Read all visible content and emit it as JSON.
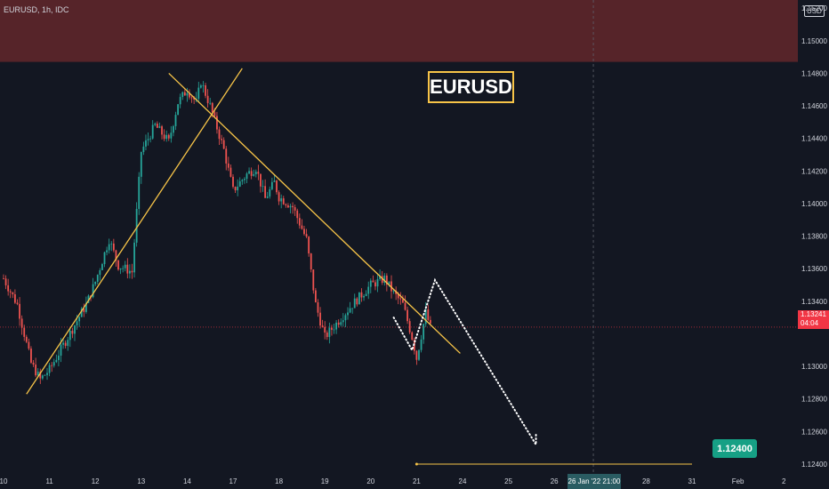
{
  "symbol": "EURUSD, 1h, IDC",
  "title_box": "EURUSD",
  "currency_badge": "USD",
  "target_label": "1.12400",
  "last_price": {
    "price": "1.13241",
    "countdown": "04:04"
  },
  "date_tag": "26 Jan '22   21:00",
  "colors": {
    "background": "#131722",
    "resistance_zone": "#562429",
    "up": "#26a69a",
    "down": "#ef5350",
    "trendline": "#f7c448",
    "target": "#16a085"
  },
  "chart_data": {
    "type": "candlestick",
    "y_ticks": [
      "1.15200",
      "1.15000",
      "1.14800",
      "1.14600",
      "1.14400",
      "1.14200",
      "1.14000",
      "1.13800",
      "1.13600",
      "1.13400",
      "1.13000",
      "1.12800",
      "1.12600",
      "1.12400"
    ],
    "x_ticks": [
      "10",
      "11",
      "12",
      "13",
      "14",
      "17",
      "18",
      "19",
      "20",
      "21",
      "24",
      "25",
      "26",
      "27",
      "28",
      "31",
      "Feb",
      "2"
    ],
    "ylim": [
      1.1234,
      1.1525
    ],
    "resistance_zone": [
      1.1487,
      1.1525
    ],
    "close_path": [
      [
        0.0,
        1.1354
      ],
      [
        0.3,
        1.1338
      ],
      [
        0.6,
        1.1302
      ],
      [
        0.8,
        1.1292
      ],
      [
        1.0,
        1.1298
      ],
      [
        1.4,
        1.1318
      ],
      [
        1.8,
        1.1338
      ],
      [
        2.0,
        1.1352
      ],
      [
        2.3,
        1.1378
      ],
      [
        2.5,
        1.1362
      ],
      [
        2.8,
        1.1358
      ],
      [
        3.0,
        1.1432
      ],
      [
        3.3,
        1.1448
      ],
      [
        3.6,
        1.1438
      ],
      [
        3.8,
        1.1462
      ],
      [
        4.0,
        1.147
      ],
      [
        4.2,
        1.1462
      ],
      [
        4.3,
        1.1475
      ],
      [
        4.5,
        1.146
      ],
      [
        4.8,
        1.1433
      ],
      [
        5.0,
        1.1408
      ],
      [
        5.3,
        1.1418
      ],
      [
        5.5,
        1.1422
      ],
      [
        5.7,
        1.1403
      ],
      [
        5.9,
        1.1413
      ],
      [
        6.0,
        1.1404
      ],
      [
        6.3,
        1.1398
      ],
      [
        6.6,
        1.1378
      ],
      [
        6.8,
        1.1338
      ],
      [
        7.0,
        1.1318
      ],
      [
        7.3,
        1.1328
      ],
      [
        7.6,
        1.1338
      ],
      [
        8.0,
        1.135
      ],
      [
        8.3,
        1.1354
      ],
      [
        8.5,
        1.1345
      ],
      [
        8.7,
        1.1338
      ],
      [
        8.9,
        1.1318
      ],
      [
        9.0,
        1.1305
      ],
      [
        9.2,
        1.1333
      ],
      [
        9.3,
        1.1324
      ]
    ],
    "trendlines": [
      {
        "from": [
          0.5,
          1.1283
        ],
        "to": [
          5.2,
          1.1483
        ]
      },
      {
        "from": [
          3.6,
          1.148
        ],
        "to": [
          9.95,
          1.1308
        ]
      }
    ],
    "projection": [
      [
        8.5,
        1.133
      ],
      [
        8.9,
        1.131
      ],
      [
        9.4,
        1.1353
      ],
      [
        11.6,
        1.1252
      ],
      [
        11.6,
        1.1258
      ]
    ],
    "target_line": {
      "price": 1.124,
      "from": 9.0,
      "to": 15.0
    },
    "current_price": 1.13241,
    "current_time": 12.85
  }
}
